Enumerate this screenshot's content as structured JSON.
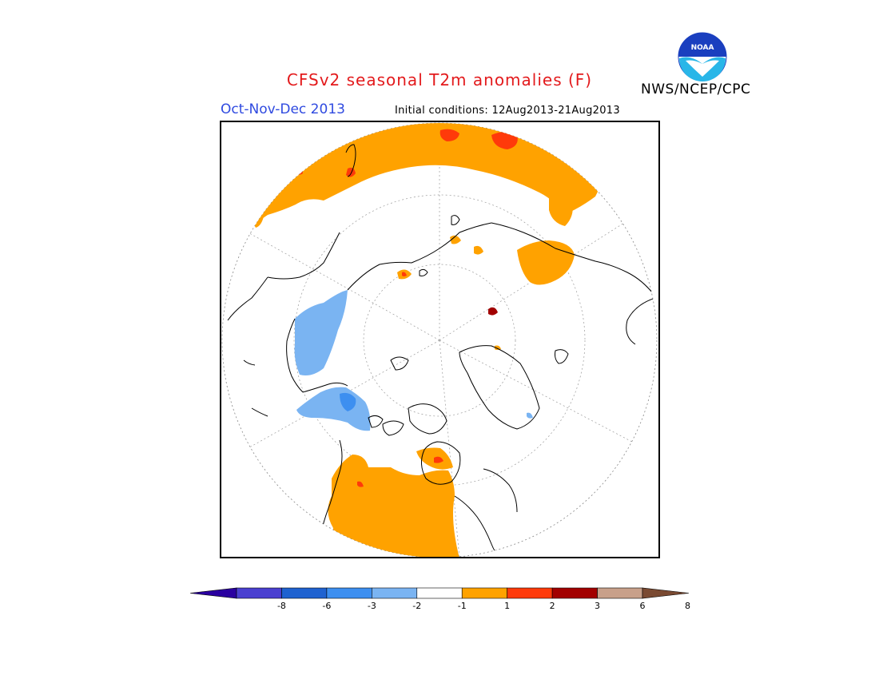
{
  "header": {
    "title": "CFSv2 seasonal T2m anomalies (F)",
    "season": "Oct-Nov-Dec 2013",
    "initial_conditions": "Initial conditions: 12Aug2013-21Aug2013",
    "agency": "NWS/NCEP/CPC",
    "logo_text": "NOAA"
  },
  "colorbar": {
    "ticks": [
      "-8",
      "-6",
      "-3",
      "-2",
      "-1",
      "1",
      "2",
      "3",
      "6",
      "8"
    ],
    "colors": [
      "#2a00a0",
      "#4a3fd0",
      "#1f62d0",
      "#3d8ff0",
      "#7ab4f2",
      "#ffffff",
      "#ffa200",
      "#ff3a0a",
      "#a20000",
      "#c8a08a",
      "#7a4a32"
    ]
  },
  "map": {
    "projection": "north polar stereographic",
    "anomaly_colors": {
      "warm1": "#ffa200",
      "warm2": "#ff3a0a",
      "warm3": "#a20000",
      "cool1": "#7ab4f2",
      "cool2": "#3d8ff0"
    }
  }
}
